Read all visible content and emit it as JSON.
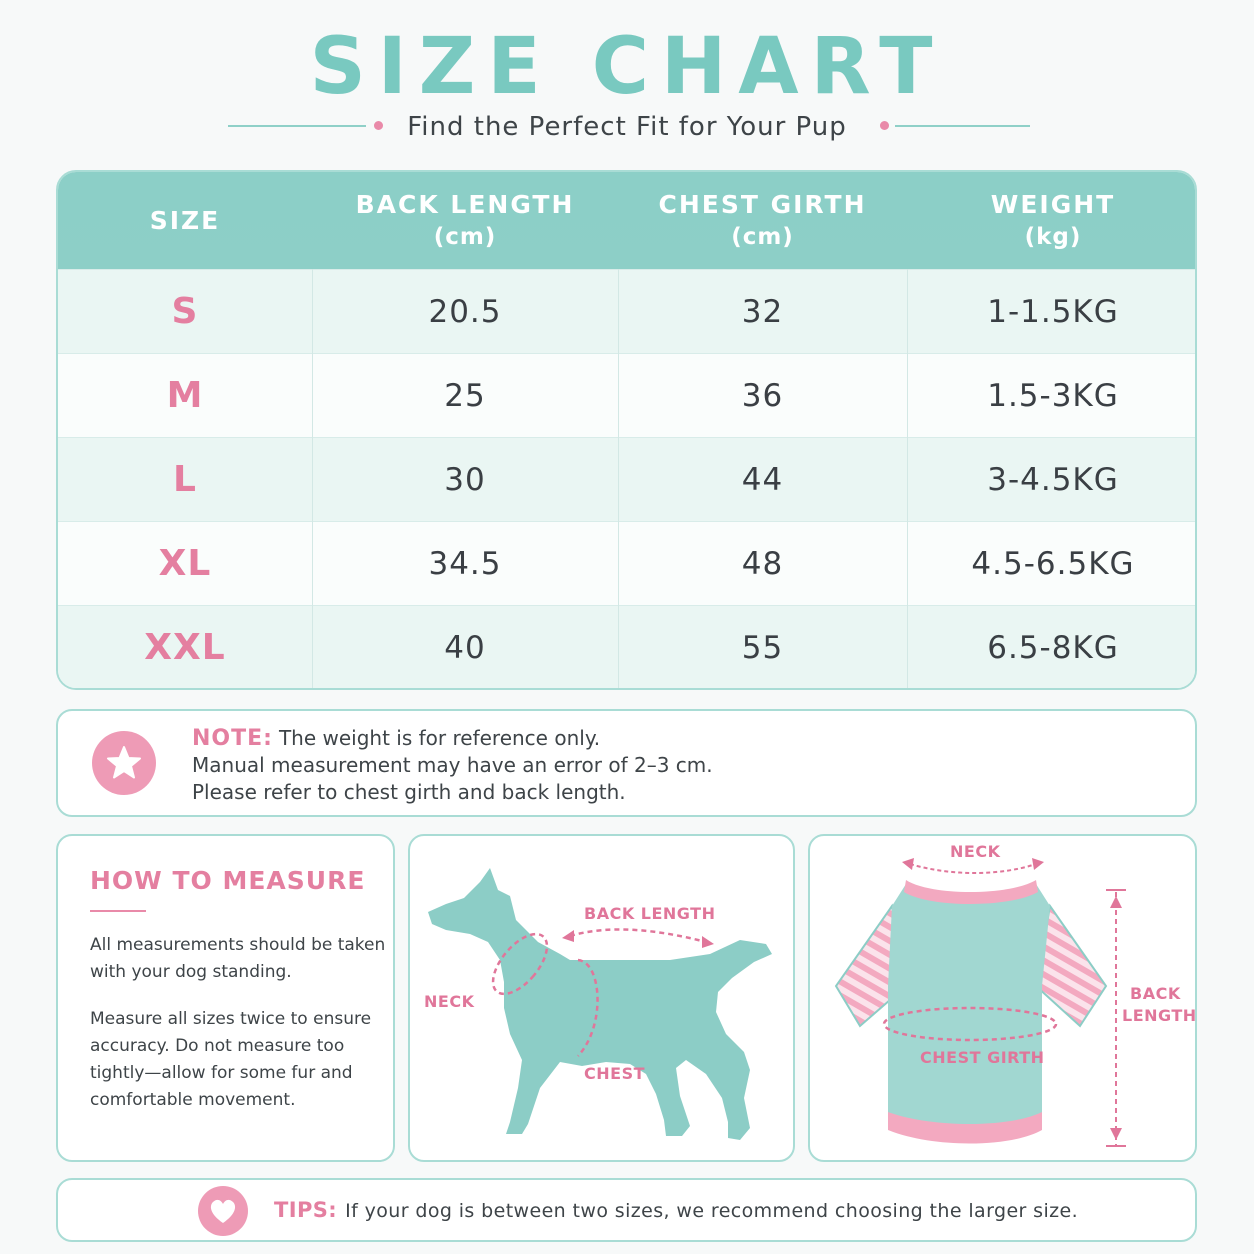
{
  "header": {
    "title": "SIZE CHART",
    "subtitle": "Find the Perfect Fit for Your Pup"
  },
  "colors": {
    "accent_teal": "#8dcfc7",
    "accent_pink": "#e47fa0",
    "text": "#3a3f44"
  },
  "size_table": {
    "columns": [
      {
        "label": "SIZE",
        "unit": ""
      },
      {
        "label": "BACK LENGTH",
        "unit": "(cm)"
      },
      {
        "label": "CHEST GIRTH",
        "unit": "(cm)"
      },
      {
        "label": "WEIGHT",
        "unit": "(kg)"
      }
    ],
    "rows": [
      {
        "size": "S",
        "back_length": "20.5",
        "chest_girth": "32",
        "weight": "1-1.5KG"
      },
      {
        "size": "M",
        "back_length": "25",
        "chest_girth": "36",
        "weight": "1.5-3KG"
      },
      {
        "size": "L",
        "back_length": "30",
        "chest_girth": "44",
        "weight": "3-4.5KG"
      },
      {
        "size": "XL",
        "back_length": "34.5",
        "chest_girth": "48",
        "weight": "4.5-6.5KG"
      },
      {
        "size": "XXL",
        "back_length": "40",
        "chest_girth": "55",
        "weight": "6.5-8KG"
      }
    ]
  },
  "note": {
    "icon": "star-icon",
    "label": "NOTE:",
    "line1": "The weight is for reference only.",
    "line2": "Manual measurement may have an error of 2–3 cm.",
    "line3": "Please refer to chest girth and back length."
  },
  "how_to_measure": {
    "title": "HOW TO MEASURE",
    "para1": "All measurements should be taken with your dog standing.",
    "para2": "Measure all sizes twice to ensure accuracy. Do not measure too tightly—allow for some fur and comfortable movement."
  },
  "dog_diagram": {
    "icon": "dog-silhouette-icon",
    "back_length_label": "BACK LENGTH",
    "neck_label": "NECK",
    "chest_label": "CHEST"
  },
  "shirt_diagram": {
    "icon": "dog-shirt-icon",
    "neck_label": "NECK",
    "back_label_1": "BACK",
    "back_label_2": "LENGTH",
    "chest_girth_label": "CHEST GIRTH"
  },
  "tips": {
    "icon": "heart-icon",
    "label": "TIPS:",
    "text": "If your dog is between two sizes, we recommend choosing the larger size."
  }
}
